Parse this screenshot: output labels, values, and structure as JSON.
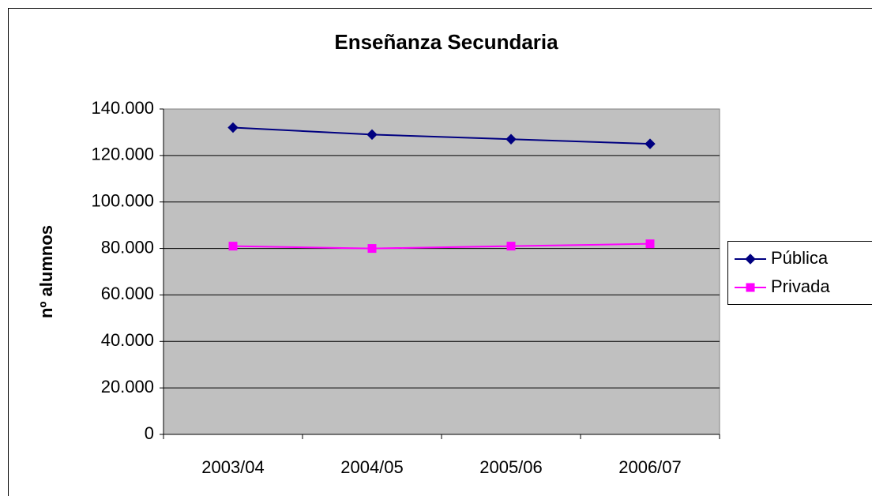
{
  "chart_data": {
    "type": "line",
    "title": "Enseñanza Secundaria",
    "y_label": "nº alumnos",
    "categories": [
      "2003/04",
      "2004/05",
      "2005/06",
      "2006/07"
    ],
    "series": [
      {
        "name": "Pública",
        "color": "#000080",
        "marker": "diamond",
        "values": [
          132000,
          129000,
          127000,
          125000
        ]
      },
      {
        "name": "Privada",
        "color": "#ff00ff",
        "marker": "square",
        "values": [
          81000,
          80000,
          81000,
          82000
        ]
      }
    ],
    "ylim": [
      0,
      140000
    ],
    "yticks": [
      0,
      {
        "value": 20000,
        "label": "20.000"
      },
      {
        "value": 40000,
        "label": "40.000"
      },
      {
        "value": 60000,
        "label": "60.000"
      },
      {
        "value": 80000,
        "label": "80.000"
      },
      {
        "value": 100000,
        "label": "100.000"
      },
      {
        "value": 120000,
        "label": "120.000"
      },
      {
        "value": 140000,
        "label": "140.000"
      }
    ],
    "grid": true,
    "legend": "right"
  }
}
